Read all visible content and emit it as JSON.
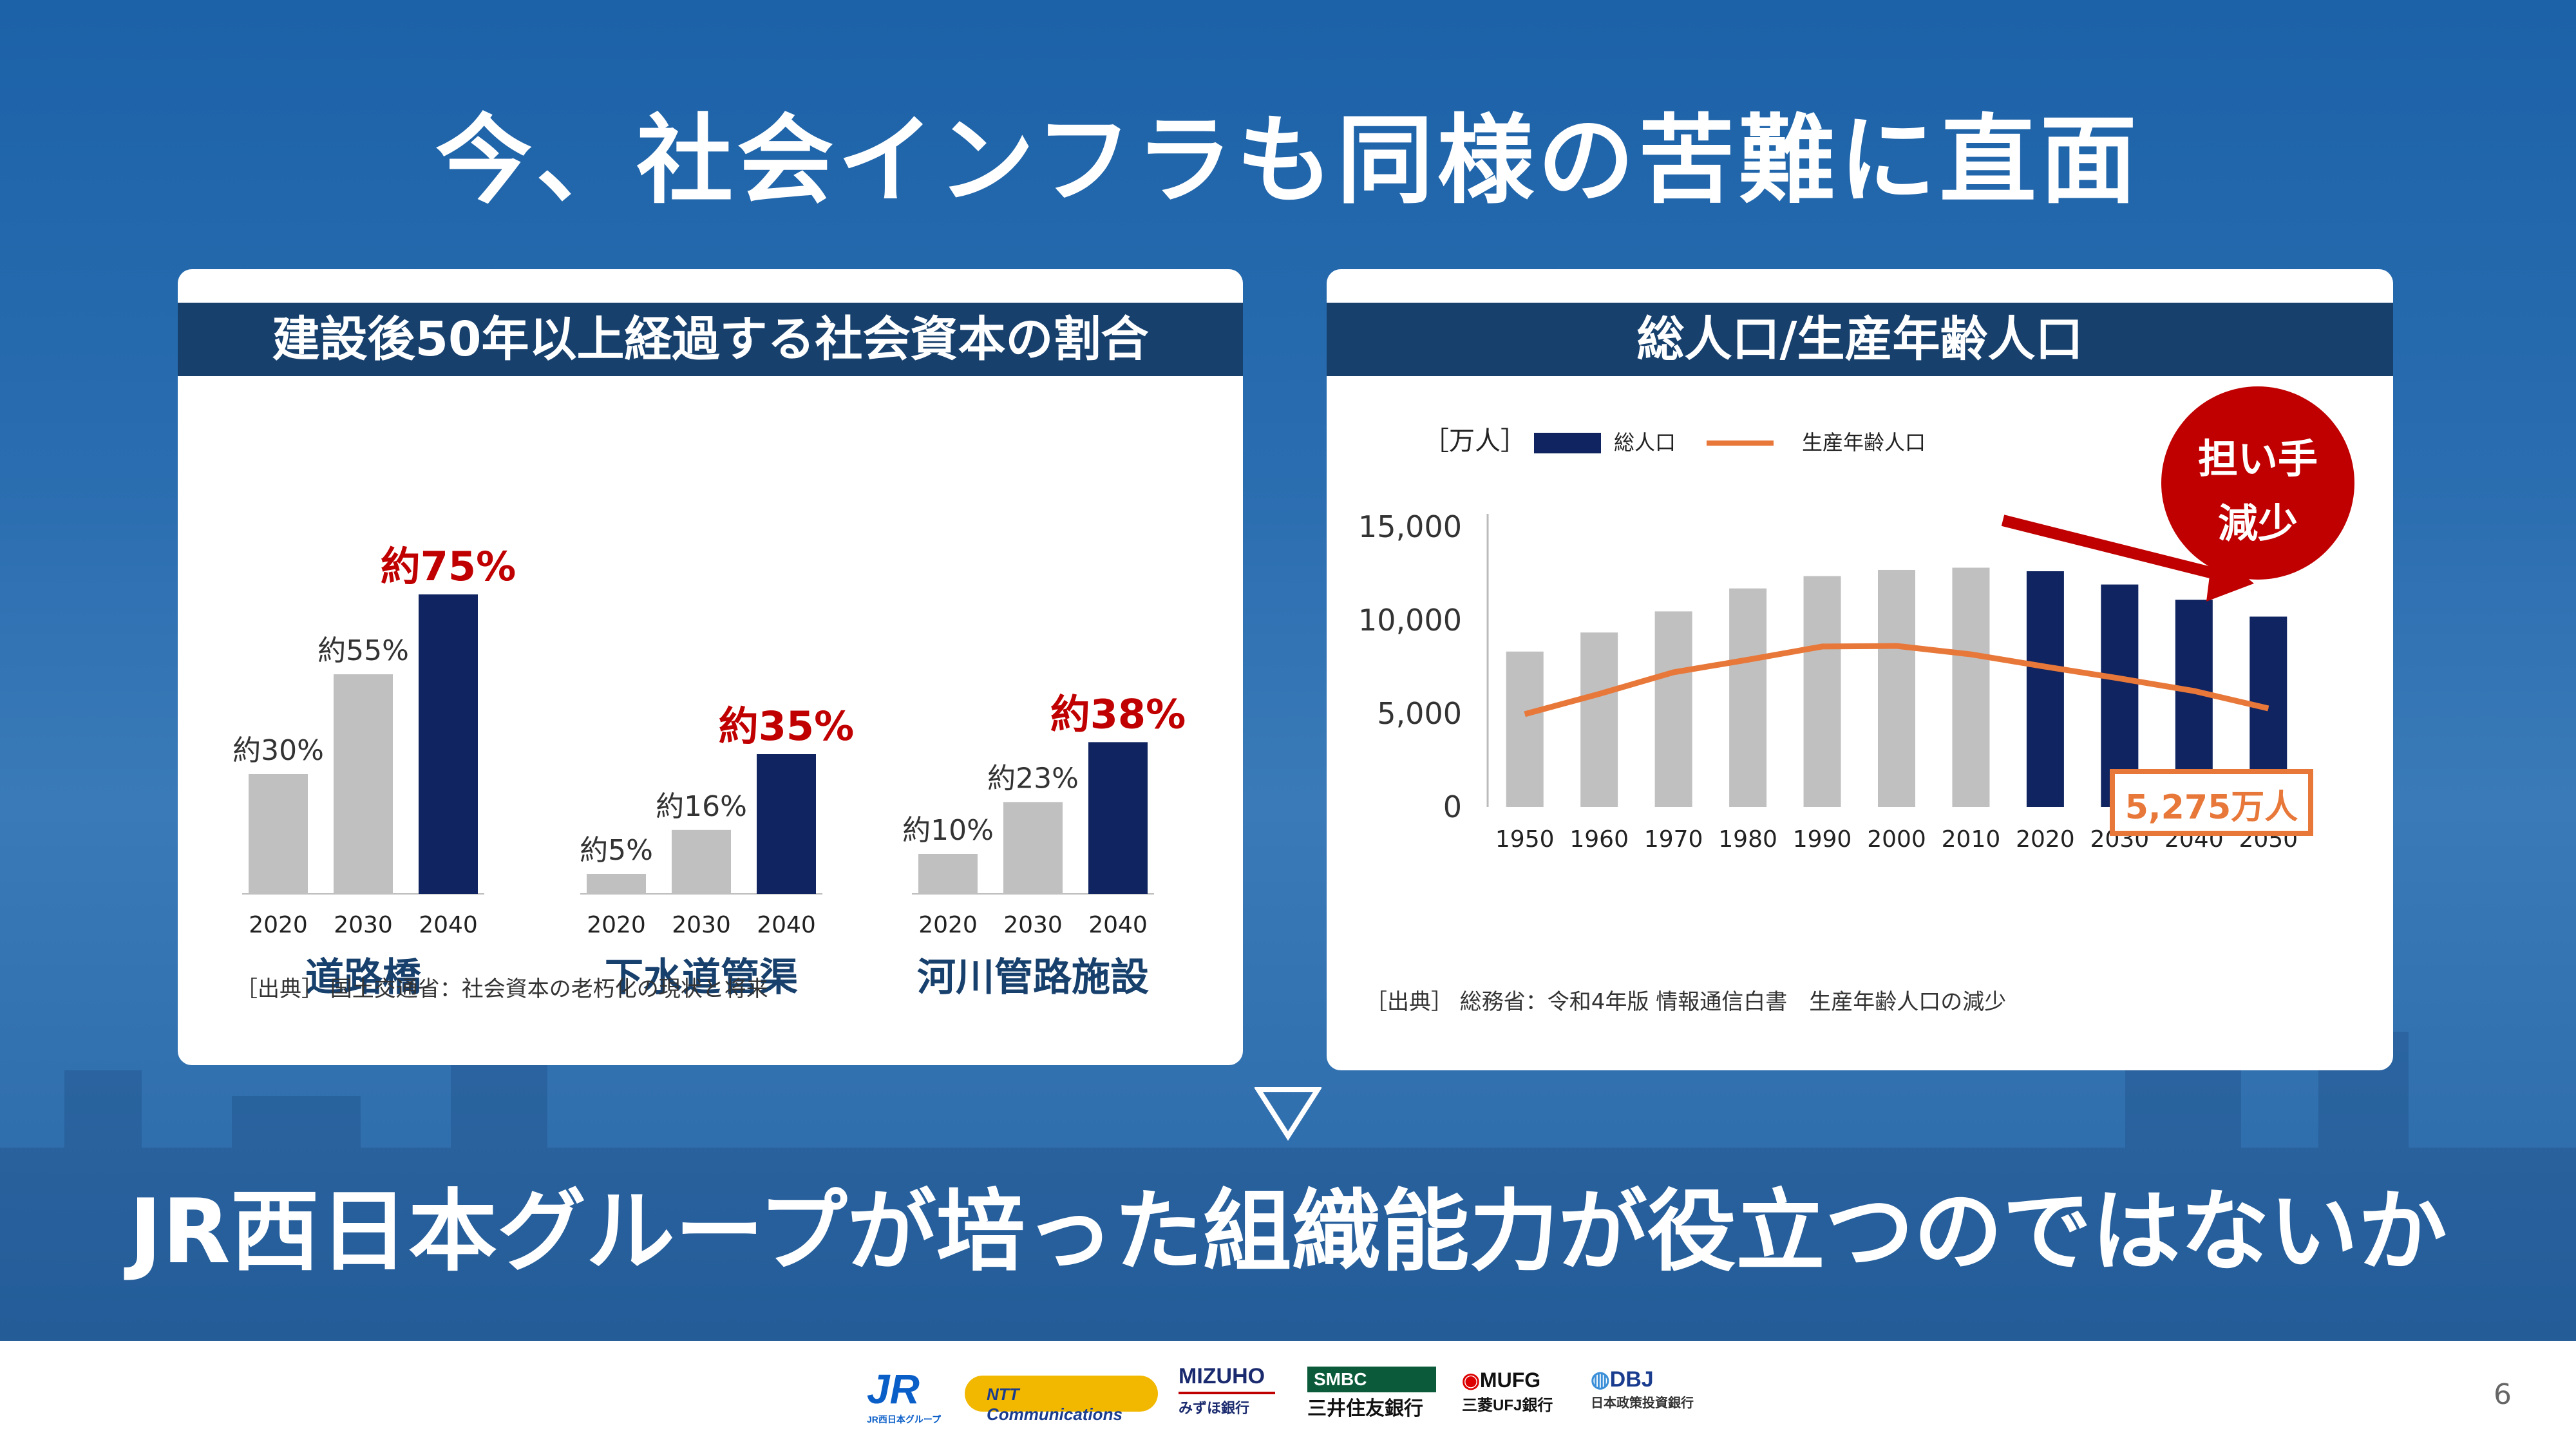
{
  "title": "今、社会インフラも同様の苦難に直面",
  "left_panel": {
    "header": "建設後50年以上経過する社会資本の割合",
    "source": "［出典］ 国土交通省：社会資本の老朽化の現状と将来",
    "groups": [
      {
        "name": "道路橋",
        "years": [
          "2020",
          "2030",
          "2040"
        ],
        "labels": [
          "約30%",
          "約55%",
          "約75%"
        ],
        "values": [
          30,
          55,
          75
        ]
      },
      {
        "name": "下水道管渠",
        "years": [
          "2020",
          "2030",
          "2040"
        ],
        "labels": [
          "約5%",
          "約16%",
          "約35%"
        ],
        "values": [
          5,
          16,
          35
        ]
      },
      {
        "name": "河川管路施設",
        "years": [
          "2020",
          "2030",
          "2040"
        ],
        "labels": [
          "約10%",
          "約23%",
          "約38%"
        ],
        "values": [
          10,
          23,
          38
        ]
      }
    ]
  },
  "right_panel": {
    "header": "総人口/生産年齢人口",
    "unit": "［万人］",
    "legend_total": "総人口",
    "legend_working": "生産年齢人口",
    "badge_line1": "担い手",
    "badge_line2": "減少",
    "callout": "5,275万人",
    "source": "［出典］ 総務省：令和4年版 情報通信白書　生産年齢人口の減少"
  },
  "chart_data": [
    {
      "type": "bar",
      "title": "建設後50年以上経過する社会資本の割合",
      "categories": [
        "道路橋",
        "下水道管渠",
        "河川管路施設"
      ],
      "x": [
        "2020",
        "2030",
        "2040"
      ],
      "series": [
        {
          "name": "道路橋",
          "values": [
            30,
            55,
            75
          ]
        },
        {
          "name": "下水道管渠",
          "values": [
            5,
            16,
            35
          ]
        },
        {
          "name": "河川管路施設",
          "values": [
            10,
            23,
            38
          ]
        }
      ],
      "colors": {
        "past": "#c0c0c0",
        "future": "#0f2460",
        "highlight_label": "#c00000"
      }
    },
    {
      "type": "bar",
      "title": "総人口/生産年齢人口",
      "ylabel": "［万人］",
      "ylim": [
        0,
        15000
      ],
      "yticks": [
        "0",
        "5,000",
        "10,000",
        "15,000"
      ],
      "categories": [
        "1950",
        "1960",
        "1970",
        "1980",
        "1990",
        "2000",
        "2010",
        "2020",
        "2030",
        "2040",
        "2050"
      ],
      "series": [
        {
          "name": "総人口",
          "values": [
            8320,
            9340,
            10470,
            11700,
            12360,
            12690,
            12810,
            12620,
            11910,
            11090,
            10190
          ]
        },
        {
          "name": "生産年齢人口",
          "values": [
            4970,
            6050,
            7210,
            7880,
            8590,
            8620,
            8170,
            7510,
            6880,
            6210,
            5275
          ]
        }
      ],
      "legend": "top",
      "colors": {
        "past": "#c0c0c0",
        "future": "#0f2460",
        "line": "#e8783a"
      }
    }
  ],
  "footer": {
    "logos": [
      "JR",
      "JR西日本グループ",
      "NTT Communications",
      "MIZUHO",
      "みずほ銀行",
      "SMBC",
      "三井住友銀行",
      "MUFG",
      "三菱UFJ銀行",
      "DBJ",
      "日本政策投資銀行"
    ],
    "page": "6"
  },
  "conclusion": "JR西日本グループが培った組織能力が役立つのではないか"
}
